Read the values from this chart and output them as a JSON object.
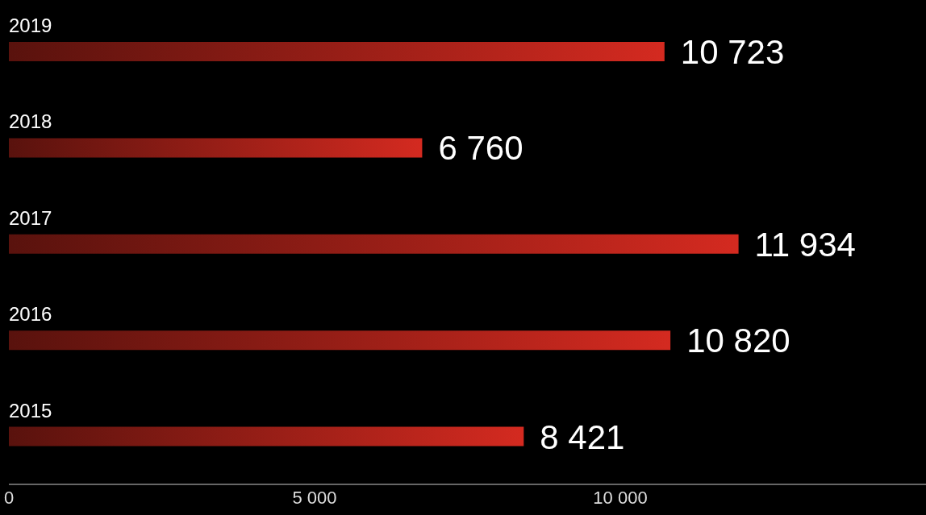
{
  "chart_data": {
    "type": "bar",
    "orientation": "horizontal",
    "categories": [
      "2019",
      "2018",
      "2017",
      "2016",
      "2015"
    ],
    "values": [
      10723,
      6760,
      11934,
      10820,
      8421
    ],
    "value_labels": [
      "10 723",
      "6 760",
      "11 934",
      "10 820",
      "8 421"
    ],
    "color": "#d42a20",
    "xlim": [
      0,
      15000
    ],
    "xticks": [
      0,
      {
        "value": 5000,
        "label": "5 000"
      },
      {
        "value": 10000,
        "label": "10 000"
      }
    ],
    "grid": false,
    "legend": false
  }
}
